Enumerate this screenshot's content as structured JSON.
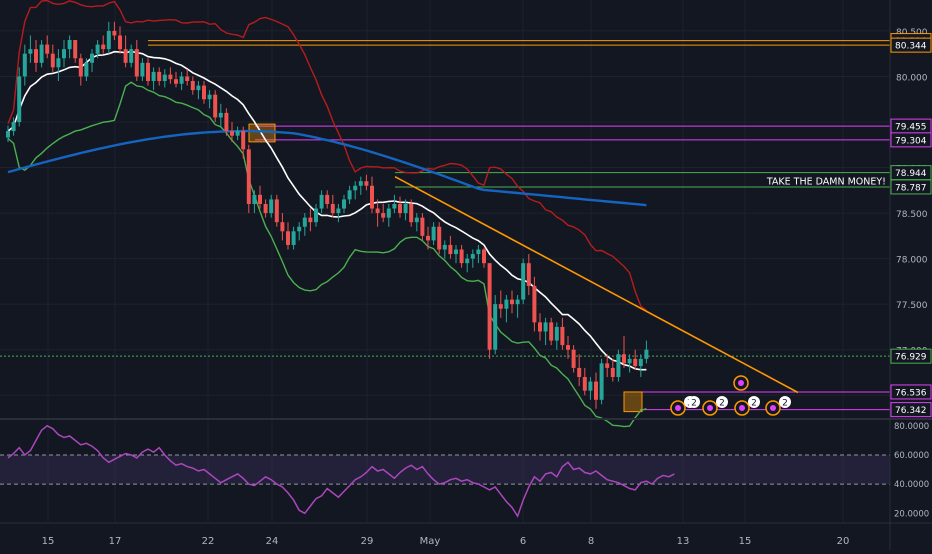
{
  "chart_data": {
    "type": "candlestick",
    "price_axis": {
      "ticks": [
        {
          "label": "80.500",
          "value": 80.5
        },
        {
          "label": "80.000",
          "value": 80.0
        },
        {
          "label": "79.500",
          "value": 79.5
        },
        {
          "label": "79.000",
          "value": 79.0
        },
        {
          "label": "78.500",
          "value": 78.5
        },
        {
          "label": "78.000",
          "value": 78.0
        },
        {
          "label": "77.500",
          "value": 77.5
        },
        {
          "label": "77.000",
          "value": 77.0
        },
        {
          "label": "76.500",
          "value": 76.5
        }
      ],
      "ylim": [
        76.25,
        80.62
      ]
    },
    "time_axis": {
      "ticks": [
        "15",
        "17",
        "22",
        "24",
        "29",
        "May",
        "6",
        "8",
        "13",
        "15",
        "20"
      ]
    },
    "price_labels": [
      {
        "label": "80.394",
        "value": 80.394,
        "color": "#ff9800"
      },
      {
        "label": "80.344",
        "value": 80.344,
        "color": "#ff9800"
      },
      {
        "label": "79.455",
        "value": 79.455,
        "color": "#e040fb"
      },
      {
        "label": "79.304",
        "value": 79.304,
        "color": "#e040fb"
      },
      {
        "label": "78.944",
        "value": 78.944,
        "color": "#4caf50"
      },
      {
        "label": "78.787",
        "value": 78.787,
        "color": "#4caf50"
      },
      {
        "label": "76.929",
        "value": 76.929,
        "color": "#4caf50"
      },
      {
        "label": "76.536",
        "value": 76.536,
        "color": "#e040fb"
      },
      {
        "label": "76.342",
        "value": 76.342,
        "color": "#e040fb"
      }
    ],
    "annotations": [
      {
        "text": "TAKE THE DAMN MONEY!",
        "value": 78.86
      }
    ],
    "event_badges": [
      "2",
      "2",
      "2",
      "2",
      "2"
    ],
    "rsi": {
      "ticks": [
        {
          "label": "80.0000",
          "value": 80
        },
        {
          "label": "60.0000",
          "value": 60
        },
        {
          "label": "40.0000",
          "value": 40
        },
        {
          "label": "20.0000",
          "value": 20
        }
      ],
      "ylim": [
        14,
        84
      ],
      "band": [
        40,
        60
      ],
      "values": [
        58,
        61,
        65,
        60,
        63,
        70,
        77,
        80,
        78,
        74,
        72,
        73,
        70,
        67,
        68,
        66,
        63,
        58,
        55,
        57,
        59,
        61,
        60,
        58,
        62,
        64,
        62,
        65,
        60,
        56,
        53,
        54,
        52,
        51,
        49,
        50,
        47,
        44,
        41,
        43,
        45,
        47,
        44,
        40,
        39,
        42,
        45,
        43,
        40,
        38,
        34,
        29,
        22,
        20,
        25,
        30,
        32,
        37,
        34,
        31,
        35,
        39,
        43,
        45,
        48,
        52,
        49,
        50,
        47,
        44,
        48,
        51,
        53,
        50,
        52,
        47,
        43,
        40,
        41,
        43,
        44,
        42,
        43,
        41,
        40,
        38,
        36,
        38,
        33,
        28,
        24,
        18,
        29,
        38,
        45,
        42,
        47,
        48,
        45,
        52,
        55,
        50,
        51,
        48,
        47,
        49,
        46,
        43,
        42,
        41,
        39,
        37,
        36,
        41,
        42,
        40,
        44,
        46,
        45,
        47
      ]
    },
    "ohlc": [
      [
        79.33,
        79.46,
        79.28,
        79.4
      ],
      [
        79.4,
        79.55,
        79.35,
        79.5
      ],
      [
        79.5,
        80.1,
        79.45,
        80.0
      ],
      [
        80.0,
        80.35,
        79.9,
        80.25
      ],
      [
        80.25,
        80.45,
        80.15,
        80.3
      ],
      [
        80.3,
        80.4,
        80.05,
        80.15
      ],
      [
        80.15,
        80.4,
        80.1,
        80.35
      ],
      [
        80.35,
        80.45,
        80.2,
        80.25
      ],
      [
        80.25,
        80.35,
        80.05,
        80.1
      ],
      [
        80.1,
        80.3,
        79.95,
        80.2
      ],
      [
        80.2,
        80.4,
        80.1,
        80.3
      ],
      [
        80.3,
        80.45,
        80.2,
        80.4
      ],
      [
        80.4,
        80.4,
        80.15,
        80.2
      ],
      [
        80.2,
        80.25,
        79.9,
        80.0
      ],
      [
        80.0,
        80.2,
        79.95,
        80.15
      ],
      [
        80.15,
        80.3,
        80.05,
        80.25
      ],
      [
        80.25,
        80.4,
        80.2,
        80.35
      ],
      [
        80.35,
        80.45,
        80.25,
        80.3
      ],
      [
        80.3,
        80.6,
        80.25,
        80.5
      ],
      [
        80.5,
        80.6,
        80.4,
        80.45
      ],
      [
        80.45,
        80.55,
        80.25,
        80.3
      ],
      [
        80.3,
        80.45,
        80.1,
        80.15
      ],
      [
        80.15,
        80.35,
        80.1,
        80.3
      ],
      [
        80.3,
        80.4,
        79.95,
        80.0
      ],
      [
        80.0,
        80.2,
        79.95,
        80.15
      ],
      [
        80.15,
        80.2,
        79.9,
        79.95
      ],
      [
        79.95,
        80.1,
        79.85,
        80.05
      ],
      [
        80.05,
        80.1,
        79.9,
        79.95
      ],
      [
        79.95,
        80.08,
        79.88,
        80.02
      ],
      [
        80.02,
        80.1,
        79.92,
        79.97
      ],
      [
        79.97,
        80.05,
        79.88,
        79.92
      ],
      [
        79.92,
        80.05,
        79.85,
        80.0
      ],
      [
        80.0,
        80.08,
        79.9,
        79.95
      ],
      [
        79.95,
        80.0,
        79.8,
        79.85
      ],
      [
        79.85,
        79.95,
        79.75,
        79.9
      ],
      [
        79.9,
        79.95,
        79.7,
        79.75
      ],
      [
        79.75,
        79.85,
        79.65,
        79.8
      ],
      [
        79.8,
        79.85,
        79.5,
        79.55
      ],
      [
        79.55,
        79.7,
        79.45,
        79.6
      ],
      [
        79.6,
        79.65,
        79.35,
        79.4
      ],
      [
        79.4,
        79.5,
        79.28,
        79.35
      ],
      [
        79.35,
        79.45,
        79.3,
        79.4
      ],
      [
        79.4,
        79.45,
        79.1,
        79.2
      ],
      [
        79.2,
        79.25,
        78.5,
        78.6
      ],
      [
        78.6,
        78.75,
        78.5,
        78.7
      ],
      [
        78.7,
        78.8,
        78.55,
        78.6
      ],
      [
        78.6,
        78.65,
        78.45,
        78.5
      ],
      [
        78.5,
        78.7,
        78.45,
        78.65
      ],
      [
        78.65,
        78.7,
        78.35,
        78.4
      ],
      [
        78.4,
        78.5,
        78.2,
        78.3
      ],
      [
        78.3,
        78.4,
        78.1,
        78.15
      ],
      [
        78.15,
        78.35,
        78.1,
        78.3
      ],
      [
        78.3,
        78.4,
        78.2,
        78.35
      ],
      [
        78.35,
        78.5,
        78.25,
        78.45
      ],
      [
        78.45,
        78.55,
        78.3,
        78.4
      ],
      [
        78.4,
        78.6,
        78.35,
        78.55
      ],
      [
        78.55,
        78.75,
        78.5,
        78.7
      ],
      [
        78.7,
        78.75,
        78.55,
        78.6
      ],
      [
        78.6,
        78.7,
        78.45,
        78.5
      ],
      [
        78.5,
        78.6,
        78.4,
        78.55
      ],
      [
        78.55,
        78.7,
        78.5,
        78.65
      ],
      [
        78.65,
        78.8,
        78.6,
        78.75
      ],
      [
        78.75,
        78.85,
        78.65,
        78.8
      ],
      [
        78.8,
        78.9,
        78.7,
        78.85
      ],
      [
        78.85,
        78.92,
        78.75,
        78.8
      ],
      [
        78.8,
        78.9,
        78.5,
        78.55
      ],
      [
        78.55,
        78.65,
        78.35,
        78.5
      ],
      [
        78.5,
        78.6,
        78.4,
        78.45
      ],
      [
        78.45,
        78.6,
        78.35,
        78.55
      ],
      [
        78.55,
        78.7,
        78.5,
        78.6
      ],
      [
        78.6,
        78.68,
        78.45,
        78.5
      ],
      [
        78.5,
        78.65,
        78.42,
        78.6
      ],
      [
        78.6,
        78.65,
        78.35,
        78.4
      ],
      [
        78.4,
        78.5,
        78.3,
        78.45
      ],
      [
        78.45,
        78.5,
        78.2,
        78.25
      ],
      [
        78.25,
        78.35,
        78.1,
        78.2
      ],
      [
        78.2,
        78.4,
        78.15,
        78.35
      ],
      [
        78.35,
        78.4,
        78.05,
        78.1
      ],
      [
        78.1,
        78.2,
        78.0,
        78.15
      ],
      [
        78.15,
        78.25,
        78.0,
        78.05
      ],
      [
        78.05,
        78.15,
        77.95,
        78.1
      ],
      [
        78.1,
        78.15,
        77.9,
        77.95
      ],
      [
        77.95,
        78.05,
        77.85,
        78.0
      ],
      [
        78.0,
        78.1,
        77.9,
        78.05
      ],
      [
        78.05,
        78.15,
        77.95,
        78.1
      ],
      [
        78.1,
        78.12,
        77.9,
        77.95
      ],
      [
        77.95,
        77.95,
        76.9,
        77.0
      ],
      [
        77.0,
        77.6,
        76.95,
        77.5
      ],
      [
        77.5,
        77.65,
        77.35,
        77.45
      ],
      [
        77.45,
        77.6,
        77.3,
        77.55
      ],
      [
        77.55,
        77.65,
        77.4,
        77.5
      ],
      [
        77.5,
        77.6,
        77.35,
        77.55
      ],
      [
        77.55,
        78.0,
        77.5,
        77.95
      ],
      [
        77.95,
        78.05,
        77.6,
        77.7
      ],
      [
        77.7,
        77.8,
        77.2,
        77.3
      ],
      [
        77.3,
        77.4,
        77.1,
        77.2
      ],
      [
        77.2,
        77.35,
        77.05,
        77.3
      ],
      [
        77.3,
        77.35,
        77.05,
        77.1
      ],
      [
        77.1,
        77.3,
        77.0,
        77.25
      ],
      [
        77.25,
        77.35,
        77.0,
        77.05
      ],
      [
        77.05,
        77.15,
        76.9,
        77.0
      ],
      [
        77.0,
        77.05,
        76.75,
        76.8
      ],
      [
        76.8,
        76.95,
        76.6,
        76.7
      ],
      [
        76.7,
        76.8,
        76.5,
        76.55
      ],
      [
        76.55,
        76.7,
        76.45,
        76.65
      ],
      [
        76.65,
        76.75,
        76.35,
        76.45
      ],
      [
        76.45,
        76.9,
        76.4,
        76.85
      ],
      [
        76.85,
        76.95,
        76.7,
        76.8
      ],
      [
        76.8,
        76.9,
        76.65,
        76.7
      ],
      [
        76.7,
        77.0,
        76.65,
        76.95
      ],
      [
        76.95,
        77.15,
        76.8,
        76.85
      ],
      [
        76.85,
        76.95,
        76.75,
        76.9
      ],
      [
        76.9,
        77.0,
        76.78,
        76.82
      ],
      [
        76.82,
        76.95,
        76.7,
        76.9
      ],
      [
        76.9,
        77.1,
        76.85,
        77.0
      ]
    ]
  }
}
